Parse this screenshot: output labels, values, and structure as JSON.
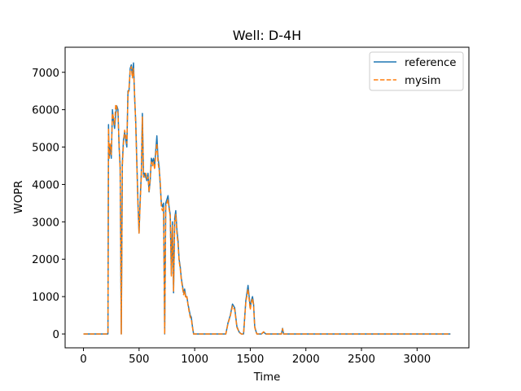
{
  "chart_data": {
    "type": "line",
    "title": "Well: D-4H",
    "xlabel": "Time",
    "ylabel": "WOPR",
    "xlim": [
      -165,
      3466
    ],
    "ylim": [
      -370,
      7670
    ],
    "xticks": [
      0,
      500,
      1000,
      1500,
      2000,
      2500,
      3000
    ],
    "yticks": [
      0,
      1000,
      2000,
      3000,
      4000,
      5000,
      6000,
      7000
    ],
    "grid": false,
    "legend_position": "top-right",
    "series": [
      {
        "name": "reference",
        "color": "#1f77b4",
        "style": "solid",
        "x": [
          0,
          100,
          220,
          225,
          230,
          240,
          250,
          260,
          270,
          280,
          290,
          300,
          310,
          320,
          330,
          340,
          350,
          360,
          370,
          380,
          390,
          400,
          410,
          420,
          430,
          440,
          450,
          460,
          470,
          480,
          490,
          500,
          510,
          520,
          530,
          540,
          550,
          560,
          570,
          580,
          590,
          600,
          610,
          620,
          630,
          640,
          650,
          660,
          670,
          680,
          690,
          700,
          710,
          720,
          730,
          740,
          750,
          760,
          770,
          780,
          790,
          800,
          810,
          820,
          830,
          840,
          850,
          860,
          870,
          880,
          890,
          900,
          910,
          920,
          930,
          940,
          950,
          960,
          970,
          980,
          990,
          1000,
          1010,
          1020,
          1030,
          1040,
          1050,
          1270,
          1280,
          1300,
          1320,
          1340,
          1360,
          1380,
          1400,
          1420,
          1440,
          1460,
          1480,
          1500,
          1510,
          1520,
          1530,
          1540,
          1550,
          1560,
          1580,
          1600,
          1620,
          1640,
          1660,
          1680,
          1700,
          1780,
          1790,
          1800,
          1810,
          3300
        ],
        "y": [
          0,
          0,
          0,
          5600,
          4700,
          5000,
          4700,
          6000,
          5700,
          5500,
          5900,
          6100,
          6000,
          5000,
          4500,
          0,
          4600,
          5200,
          5400,
          5200,
          5000,
          6500,
          6500,
          7100,
          7200,
          6900,
          7250,
          6300,
          5700,
          4600,
          3500,
          2700,
          3600,
          4300,
          5900,
          4200,
          4300,
          4200,
          4100,
          4300,
          3800,
          4100,
          4700,
          4600,
          4700,
          4500,
          4900,
          5300,
          4700,
          4500,
          4000,
          3500,
          3400,
          3500,
          0,
          3500,
          3600,
          3700,
          3400,
          3200,
          1600,
          3000,
          1100,
          3100,
          3300,
          2800,
          2500,
          2000,
          1800,
          1500,
          1300,
          1100,
          1200,
          1000,
          1000,
          800,
          650,
          500,
          450,
          200,
          0,
          0,
          0,
          0,
          0,
          0,
          0,
          0,
          0,
          300,
          500,
          800,
          700,
          200,
          50,
          0,
          0,
          900,
          1300,
          700,
          900,
          1000,
          800,
          200,
          80,
          0,
          0,
          0,
          50,
          0,
          0,
          0,
          0,
          0,
          150,
          0,
          0,
          0
        ]
      },
      {
        "name": "mysim",
        "color": "#ff7f0e",
        "style": "dashed",
        "x": [
          0,
          100,
          220,
          225,
          230,
          240,
          250,
          260,
          270,
          280,
          290,
          300,
          310,
          320,
          330,
          340,
          350,
          360,
          370,
          380,
          390,
          400,
          410,
          420,
          430,
          440,
          450,
          460,
          470,
          480,
          490,
          500,
          510,
          520,
          530,
          540,
          550,
          560,
          570,
          580,
          590,
          600,
          610,
          620,
          630,
          640,
          650,
          660,
          670,
          680,
          690,
          700,
          710,
          720,
          730,
          740,
          750,
          760,
          770,
          780,
          790,
          800,
          810,
          820,
          830,
          840,
          850,
          860,
          870,
          880,
          890,
          900,
          910,
          920,
          930,
          940,
          950,
          960,
          970,
          980,
          990,
          1000,
          1010,
          1020,
          1030,
          1040,
          1050,
          1270,
          1280,
          1300,
          1320,
          1340,
          1360,
          1380,
          1400,
          1420,
          1440,
          1460,
          1480,
          1500,
          1510,
          1520,
          1530,
          1540,
          1550,
          1560,
          1580,
          1600,
          1620,
          1640,
          1660,
          1680,
          1700,
          1780,
          1790,
          1800,
          1810,
          3300
        ],
        "y": [
          0,
          0,
          0,
          5500,
          4700,
          5100,
          4800,
          5900,
          5800,
          5600,
          6150,
          6050,
          5900,
          5100,
          4400,
          0,
          4500,
          5100,
          5450,
          5300,
          5100,
          6400,
          6600,
          7050,
          7150,
          6850,
          7100,
          6400,
          5600,
          4500,
          3400,
          2700,
          3500,
          4200,
          5800,
          4200,
          4200,
          4300,
          4150,
          4200,
          3800,
          4200,
          4600,
          4500,
          4600,
          4400,
          4800,
          5100,
          4600,
          4400,
          4100,
          3400,
          3300,
          3400,
          0,
          3400,
          3500,
          3600,
          3350,
          3150,
          1550,
          2900,
          1150,
          3000,
          3200,
          2700,
          2400,
          1950,
          1750,
          1450,
          1250,
          1050,
          1150,
          950,
          1000,
          780,
          600,
          450,
          400,
          180,
          0,
          0,
          0,
          0,
          0,
          0,
          0,
          0,
          0,
          280,
          480,
          750,
          650,
          180,
          40,
          0,
          0,
          850,
          1200,
          650,
          850,
          950,
          750,
          180,
          60,
          0,
          0,
          0,
          60,
          0,
          0,
          0,
          0,
          0,
          140,
          0,
          0,
          0
        ]
      }
    ]
  }
}
